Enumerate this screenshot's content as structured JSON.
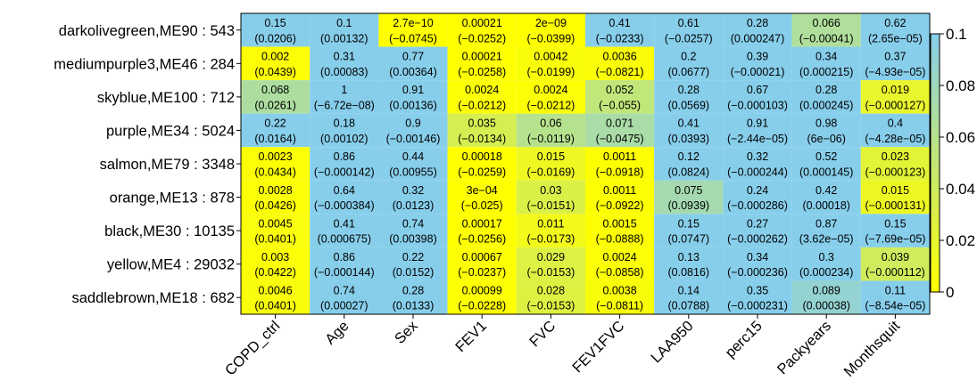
{
  "chart_data": {
    "type": "heatmap",
    "title": "",
    "xlabel": "",
    "ylabel": "",
    "rows": [
      "darkolivegreen,ME90 : 543",
      "mediumpurple3,ME46 : 284",
      "skyblue,ME100 : 712",
      "purple,ME34 : 5024",
      "salmon,ME79 : 3348",
      "orange,ME13 : 878",
      "black,ME30 : 10135",
      "yellow,ME4 : 29032",
      "saddlebrown,ME18 : 682"
    ],
    "columns": [
      "COPD_ctrl",
      "Age",
      "Sex",
      "FEV1",
      "FVC",
      "FEV1FVC",
      "LAA950",
      "perc15",
      "Packyears",
      "Monthsquit"
    ],
    "pvalues": [
      [
        "0.15",
        "0.1",
        "2.7e−10",
        "0.00021",
        "2e−09",
        "0.41",
        "0.61",
        "0.28",
        "0.066",
        "0.62"
      ],
      [
        "0.002",
        "0.31",
        "0.77",
        "0.00021",
        "0.0042",
        "0.0036",
        "0.2",
        "0.39",
        "0.34",
        "0.37"
      ],
      [
        "0.068",
        "1",
        "0.91",
        "0.0024",
        "0.0024",
        "0.052",
        "0.28",
        "0.67",
        "0.28",
        "0.019"
      ],
      [
        "0.22",
        "0.18",
        "0.9",
        "0.035",
        "0.06",
        "0.071",
        "0.41",
        "0.91",
        "0.98",
        "0.4"
      ],
      [
        "0.0023",
        "0.86",
        "0.44",
        "0.00018",
        "0.015",
        "0.0011",
        "0.12",
        "0.32",
        "0.52",
        "0.023"
      ],
      [
        "0.0028",
        "0.64",
        "0.32",
        "3e−04",
        "0.03",
        "0.0011",
        "0.075",
        "0.24",
        "0.42",
        "0.015"
      ],
      [
        "0.0045",
        "0.41",
        "0.74",
        "0.00017",
        "0.011",
        "0.0015",
        "0.15",
        "0.27",
        "0.87",
        "0.15"
      ],
      [
        "0.003",
        "0.86",
        "0.22",
        "0.00067",
        "0.029",
        "0.0024",
        "0.13",
        "0.34",
        "0.3",
        "0.039"
      ],
      [
        "0.0046",
        "0.74",
        "0.28",
        "0.00099",
        "0.028",
        "0.0038",
        "0.14",
        "0.35",
        "0.089",
        "0.11"
      ]
    ],
    "coefficients": [
      [
        "(0.0206)",
        "(0.00132)",
        "(−0.0745)",
        "(−0.0252)",
        "(−0.0399)",
        "(−0.0233)",
        "(−0.0257)",
        "(0.000247)",
        "(−0.00041)",
        "(2.65e−05)"
      ],
      [
        "(0.0439)",
        "(0.00083)",
        "(0.00364)",
        "(−0.0258)",
        "(−0.0199)",
        "(−0.0821)",
        "(0.0677)",
        "(−0.00021)",
        "(0.000215)",
        "(−4.93e−05)"
      ],
      [
        "(0.0261)",
        "(−6.72e−08)",
        "(0.00136)",
        "(−0.0212)",
        "(−0.0212)",
        "(−0.055)",
        "(0.0569)",
        "(−0.000103)",
        "(0.000245)",
        "(−0.000127)"
      ],
      [
        "(0.0164)",
        "(0.00102)",
        "(−0.00146)",
        "(−0.0134)",
        "(−0.0119)",
        "(−0.0475)",
        "(0.0393)",
        "(−2.44e−05)",
        "(6e−06)",
        "(−4.28e−05)"
      ],
      [
        "(0.0434)",
        "(−0.000142)",
        "(0.00955)",
        "(−0.0259)",
        "(−0.0169)",
        "(−0.0918)",
        "(0.0824)",
        "(−0.000244)",
        "(0.000145)",
        "(−0.000123)"
      ],
      [
        "(0.0426)",
        "(−0.000384)",
        "(0.0123)",
        "(−0.025)",
        "(−0.0151)",
        "(−0.0922)",
        "(0.0939)",
        "(−0.000286)",
        "(0.00018)",
        "(−0.000131)"
      ],
      [
        "(0.0401)",
        "(0.000675)",
        "(0.00398)",
        "(−0.0256)",
        "(−0.0173)",
        "(−0.0888)",
        "(0.0747)",
        "(−0.000262)",
        "(3.62e−05)",
        "(−7.69e−05)"
      ],
      [
        "(0.0422)",
        "(−0.000144)",
        "(0.0152)",
        "(−0.0237)",
        "(−0.0153)",
        "(−0.0858)",
        "(0.0816)",
        "(−0.000236)",
        "(0.000234)",
        "(−0.000112)"
      ],
      [
        "(0.0401)",
        "(0.00027)",
        "(0.0133)",
        "(−0.0228)",
        "(−0.0153)",
        "(−0.0811)",
        "(0.0788)",
        "(−0.000231)",
        "(0.00038)",
        "(−8.54e−05)"
      ]
    ],
    "color_scale": {
      "min": 0,
      "max": 0.1,
      "low_color": "#ffff00",
      "high_color": "#87ceeb",
      "ticks": [
        "0",
        "0.02",
        "0.04",
        "0.06",
        "0.08",
        "0.1"
      ]
    },
    "legend_position": "right"
  }
}
